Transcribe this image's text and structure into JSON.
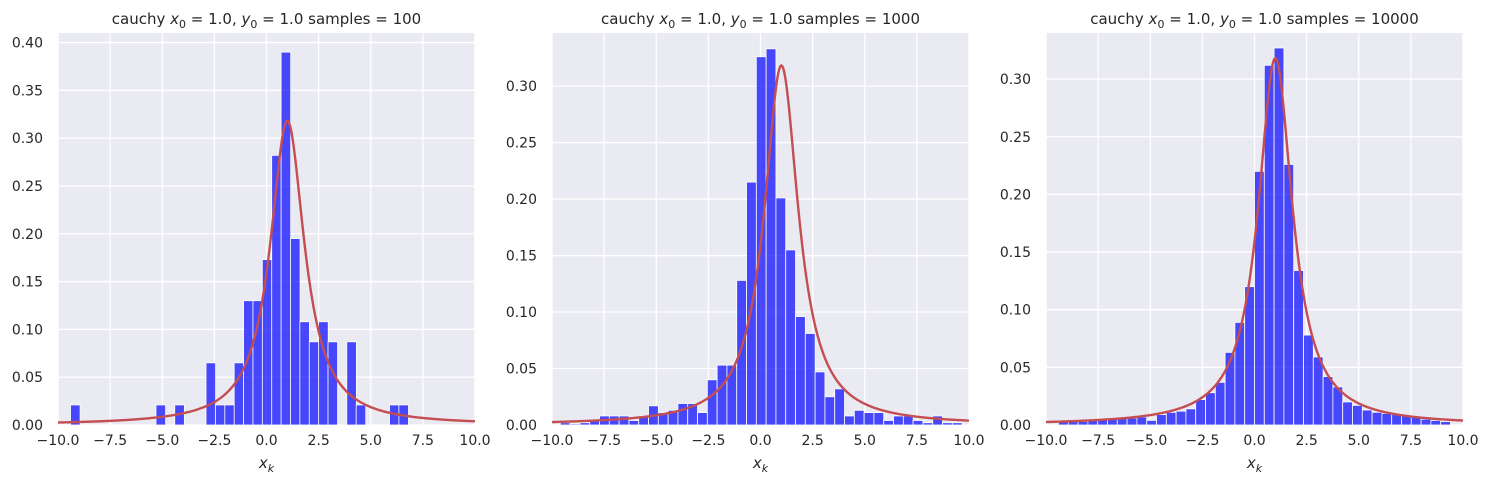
{
  "colors": {
    "plot_bg": "#eaeaf2",
    "grid": "#ffffff",
    "bars": "#0000ff",
    "curve": "#c44e52"
  },
  "chart_data": [
    {
      "type": "bar",
      "title": "cauchy x0 = 1.0, y0 = 1.0  samples = 100",
      "title_parts": {
        "prefix": "cauchy ",
        "x_sym": "x",
        "x_sub": "0",
        "x_val": " = 1.0, ",
        "y_sym": "y",
        "y_sub": "0",
        "y_val": " = 1.0  samples = 100"
      },
      "xlabel": "x_k",
      "xlabel_parts": {
        "sym": "x",
        "sub": "k"
      },
      "xlim": [
        -10,
        10
      ],
      "ylim": [
        0,
        0.41
      ],
      "grid": true,
      "xticks": [
        -10,
        -7.5,
        -5,
        -2.5,
        0,
        2.5,
        5,
        7.5,
        10
      ],
      "xtick_labels": [
        "−10.0",
        "−7.5",
        "−5.0",
        "−2.5",
        "0.0",
        "2.5",
        "5.0",
        "7.5",
        "10.0"
      ],
      "yticks": [
        0,
        0.05,
        0.1,
        0.15,
        0.2,
        0.25,
        0.3,
        0.35,
        0.4
      ],
      "ytick_labels": [
        "0.00",
        "0.05",
        "0.10",
        "0.15",
        "0.20",
        "0.25",
        "0.30",
        "0.35",
        "0.40"
      ],
      "bin_width": 0.46,
      "bin_lefts": [
        -9.4,
        -5.3,
        -4.4,
        -2.9,
        -2.45,
        -2.0,
        -1.55,
        -1.1,
        -0.65,
        -0.2,
        0.25,
        0.7,
        1.15,
        1.6,
        2.05,
        2.5,
        2.95,
        3.85,
        4.3,
        5.9,
        6.35
      ],
      "values": [
        0.021,
        0.021,
        0.021,
        0.065,
        0.021,
        0.021,
        0.065,
        0.13,
        0.13,
        0.173,
        0.282,
        0.39,
        0.195,
        0.108,
        0.087,
        0.108,
        0.087,
        0.087,
        0.021,
        0.021,
        0.021
      ],
      "curve": {
        "label": "cauchy pdf",
        "x0": 1.0,
        "gamma": 1.0,
        "peak": 0.318
      }
    },
    {
      "type": "bar",
      "title": "cauchy x0 = 1.0, y0 = 1.0  samples = 1000",
      "title_parts": {
        "prefix": "cauchy ",
        "x_sym": "x",
        "x_sub": "0",
        "x_val": " = 1.0, ",
        "y_sym": "y",
        "y_sub": "0",
        "y_val": " = 1.0  samples = 1000"
      },
      "xlabel": "x_k",
      "xlabel_parts": {
        "sym": "x",
        "sub": "k"
      },
      "xlim": [
        -10,
        10
      ],
      "ylim": [
        0,
        0.347
      ],
      "grid": true,
      "xticks": [
        -10,
        -7.5,
        -5,
        -2.5,
        0,
        2.5,
        5,
        7.5,
        10
      ],
      "xtick_labels": [
        "−10.0",
        "−7.5",
        "−5.0",
        "−2.5",
        "0.0",
        "2.5",
        "5.0",
        "7.5",
        "10.0"
      ],
      "yticks": [
        0,
        0.05,
        0.1,
        0.15,
        0.2,
        0.25,
        0.3
      ],
      "ytick_labels": [
        "0.00",
        "0.05",
        "0.10",
        "0.15",
        "0.20",
        "0.25",
        "0.30"
      ],
      "bin_width": 0.47,
      "bin_lefts": [
        -9.6,
        -9.13,
        -8.66,
        -8.19,
        -7.72,
        -7.25,
        -6.78,
        -6.31,
        -5.84,
        -5.37,
        -4.9,
        -4.43,
        -3.96,
        -3.49,
        -3.02,
        -2.55,
        -2.08,
        -1.61,
        -1.14,
        -0.67,
        -0.2,
        0.27,
        0.74,
        1.21,
        1.68,
        2.15,
        2.62,
        3.09,
        3.56,
        4.03,
        4.5,
        4.97,
        5.44,
        5.91,
        6.38,
        6.85,
        7.32,
        7.79,
        8.26,
        8.73,
        9.2
      ],
      "values": [
        0.002,
        0.001,
        0.002,
        0.004,
        0.008,
        0.008,
        0.008,
        0.004,
        0.008,
        0.017,
        0.011,
        0.013,
        0.019,
        0.019,
        0.011,
        0.04,
        0.053,
        0.053,
        0.128,
        0.215,
        0.326,
        0.333,
        0.201,
        0.155,
        0.096,
        0.081,
        0.047,
        0.025,
        0.032,
        0.008,
        0.013,
        0.011,
        0.011,
        0.004,
        0.008,
        0.008,
        0.004,
        0.002,
        0.008,
        0.002,
        0.002
      ],
      "curve": {
        "label": "cauchy pdf",
        "x0": 1.0,
        "gamma": 1.0,
        "peak": 0.318
      }
    },
    {
      "type": "bar",
      "title": "cauchy x0 = 1.0, y0 = 1.0  samples = 10000",
      "title_parts": {
        "prefix": "cauchy ",
        "x_sym": "x",
        "x_sub": "0",
        "x_val": " = 1.0, ",
        "y_sym": "y",
        "y_sub": "0",
        "y_val": " = 1.0  samples = 10000"
      },
      "xlabel": "x_k",
      "xlabel_parts": {
        "sym": "x",
        "sub": "k"
      },
      "xlim": [
        -10,
        10
      ],
      "ylim": [
        0,
        0.34
      ],
      "grid": true,
      "xticks": [
        -10,
        -7.5,
        -5,
        -2.5,
        0,
        2.5,
        5,
        7.5,
        10
      ],
      "xtick_labels": [
        "−10.0",
        "−7.5",
        "−5.0",
        "−2.5",
        "0.0",
        "2.5",
        "5.0",
        "7.5",
        "10.0"
      ],
      "yticks": [
        0,
        0.05,
        0.1,
        0.15,
        0.2,
        0.25,
        0.3
      ],
      "ytick_labels": [
        "0.00",
        "0.05",
        "0.10",
        "0.15",
        "0.20",
        "0.25",
        "0.30"
      ],
      "bin_width": 0.47,
      "bin_lefts": [
        -9.4,
        -8.93,
        -8.46,
        -7.99,
        -7.52,
        -7.05,
        -6.58,
        -6.11,
        -5.64,
        -5.17,
        -4.7,
        -4.23,
        -3.76,
        -3.29,
        -2.82,
        -2.35,
        -1.88,
        -1.41,
        -0.94,
        -0.47,
        0.0,
        0.47,
        0.94,
        1.41,
        1.88,
        2.35,
        2.82,
        3.29,
        3.76,
        4.23,
        4.7,
        5.17,
        5.64,
        6.11,
        6.58,
        7.05,
        7.52,
        7.99,
        8.46,
        8.93
      ],
      "values": [
        0.003,
        0.003,
        0.003,
        0.004,
        0.005,
        0.005,
        0.006,
        0.006,
        0.007,
        0.004,
        0.009,
        0.011,
        0.012,
        0.014,
        0.022,
        0.028,
        0.037,
        0.063,
        0.089,
        0.12,
        0.22,
        0.312,
        0.327,
        0.226,
        0.134,
        0.078,
        0.059,
        0.042,
        0.033,
        0.02,
        0.017,
        0.013,
        0.011,
        0.01,
        0.009,
        0.008,
        0.007,
        0.005,
        0.004,
        0.003
      ],
      "curve": {
        "label": "cauchy pdf",
        "x0": 1.0,
        "gamma": 1.0,
        "peak": 0.318
      }
    }
  ]
}
